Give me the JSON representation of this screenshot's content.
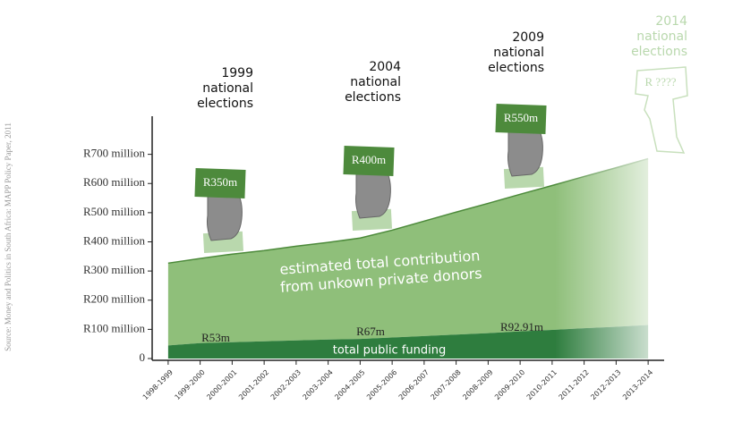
{
  "chart_data": {
    "type": "stacked_area",
    "source": "Source: Money and Politics in South Africa: MAPP Policy Paper, 2011",
    "categories": [
      "1998-1999",
      "1999-2000",
      "2000-2001",
      "2001-2002",
      "2002-2003",
      "2003-2004",
      "2004-2005",
      "2005-2006",
      "2006-2007",
      "2007-2008",
      "2008-2009",
      "2009-2010",
      "2010-2011",
      "2011-2012",
      "2012-2013",
      "2013-2014"
    ],
    "series": [
      {
        "name": "total public funding",
        "color": "#2e7d3e",
        "values": [
          45,
          53,
          56,
          59,
          62,
          65,
          67,
          72,
          77,
          82,
          87,
          93,
          98,
          104,
          109,
          115
        ]
      },
      {
        "name": "estimated total contribution from unkown private donors",
        "color": "#8fbf7a",
        "values": [
          282,
          290,
          302,
          311,
          323,
          333,
          346,
          368,
          394,
          420,
          445,
          470,
          495,
          520,
          545,
          570
        ]
      }
    ],
    "ylim": [
      0,
      800
    ],
    "yticks": [
      0,
      {
        "value": 100,
        "label": "R100 million"
      },
      {
        "value": 200,
        "label": "R200 million"
      },
      {
        "value": 300,
        "label": "R300 million"
      },
      {
        "value": 400,
        "label": "R400 million"
      },
      {
        "value": 500,
        "label": "R500 million"
      },
      {
        "value": 600,
        "label": "R600 million"
      },
      {
        "value": 700,
        "label": "R700 million"
      }
    ],
    "public_labels": [
      "R53m",
      "R67m",
      "R92.91m"
    ],
    "elections": [
      {
        "lines": [
          "1999",
          "national",
          "elections"
        ],
        "amount": "R350m"
      },
      {
        "lines": [
          "2004",
          "national",
          "elections"
        ],
        "amount": "R400m"
      },
      {
        "lines": [
          "2009",
          "national",
          "elections"
        ],
        "amount": "R550m"
      },
      {
        "lines": [
          "2014",
          "national",
          "elections"
        ],
        "amount": "R ????"
      }
    ]
  }
}
